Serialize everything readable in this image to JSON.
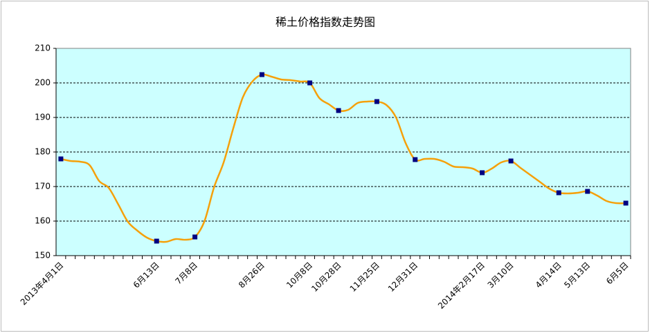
{
  "chart_data": {
    "type": "line",
    "title": "稀土价格指数走势图",
    "categories": [
      "2013年4月1日",
      null,
      null,
      null,
      null,
      null,
      null,
      null,
      null,
      null,
      "6月13日",
      null,
      null,
      null,
      "7月8日",
      null,
      null,
      null,
      null,
      null,
      null,
      "8月26日",
      null,
      null,
      null,
      null,
      "10月8日",
      null,
      null,
      "10月28日",
      null,
      null,
      null,
      "11月25日",
      null,
      null,
      null,
      "12月31日",
      null,
      null,
      null,
      null,
      null,
      null,
      "2014年2月17日",
      null,
      null,
      "3月10日",
      null,
      null,
      null,
      null,
      "4月14日",
      null,
      null,
      "5月13日",
      null,
      null,
      null,
      "6月5日"
    ],
    "series": [
      {
        "color": "#f5a00a",
        "marker_color": "#000080",
        "values": [
          178,
          177.4,
          177.2,
          176.2,
          171.6,
          169.6,
          164.8,
          159.8,
          157.2,
          155.2,
          154.2,
          154,
          154.8,
          154.6,
          155.4,
          160,
          169.8,
          177,
          186.8,
          195.8,
          200.4,
          202.4,
          201.8,
          201,
          200.8,
          200.4,
          200,
          195.6,
          193.8,
          192,
          192.2,
          194.2,
          194.6,
          194.6,
          193.6,
          190,
          182.6,
          177.8,
          178,
          178,
          177.2,
          175.8,
          175.6,
          175.2,
          174,
          175.2,
          177,
          177.4,
          175.4,
          173.4,
          171.4,
          169.4,
          168.2,
          168,
          168.2,
          168.6,
          167.4,
          165.8,
          165.2,
          165.2
        ]
      }
    ],
    "ylim": [
      150,
      210
    ],
    "yticks": [
      150,
      160,
      170,
      180,
      190,
      200,
      210
    ],
    "grid": true,
    "background": "#ccffff"
  }
}
